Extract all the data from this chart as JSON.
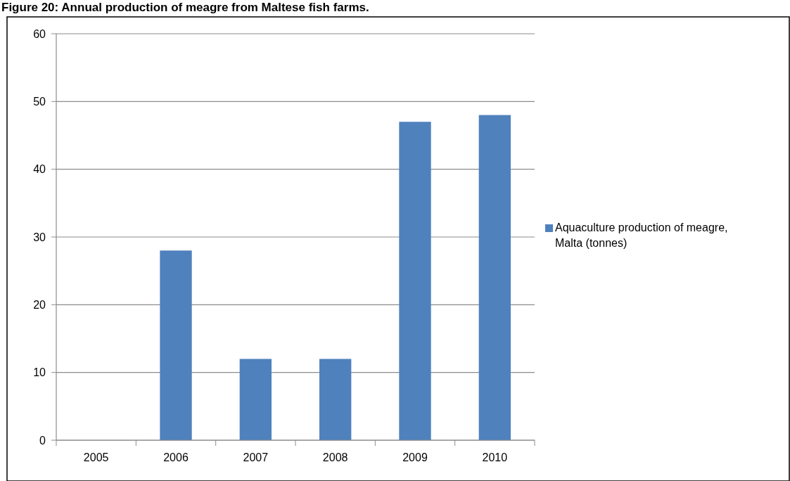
{
  "chart_data": {
    "type": "bar",
    "title": "Figure 20: Annual production of meagre from Maltese fish farms.",
    "categories": [
      "2005",
      "2006",
      "2007",
      "2008",
      "2009",
      "2010"
    ],
    "series": [
      {
        "name": "Aquaculture production of meagre, Malta (tonnes)",
        "color": "#4f81bd",
        "values": [
          0,
          28,
          12,
          12,
          47,
          48
        ]
      }
    ],
    "ylim": [
      0,
      60
    ],
    "yticks": [
      0,
      10,
      20,
      30,
      40,
      50,
      60
    ],
    "grid": "y",
    "legend": "right"
  }
}
